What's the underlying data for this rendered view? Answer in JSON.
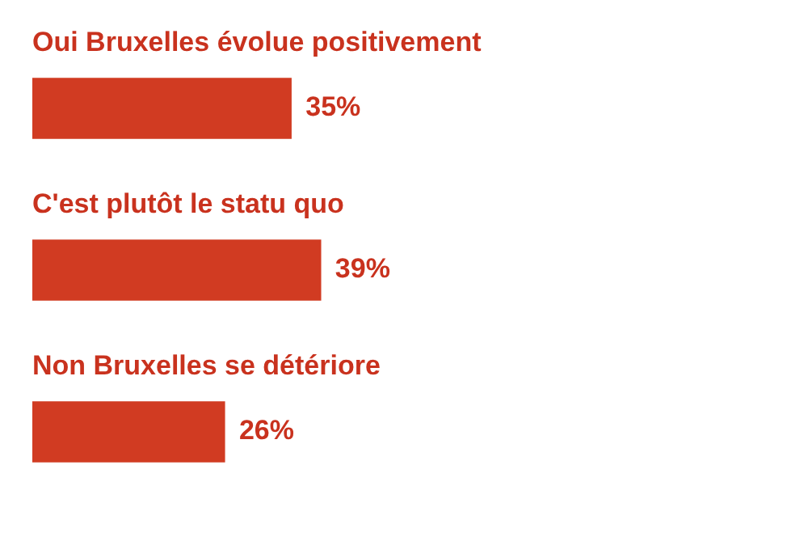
{
  "chart_data": {
    "type": "bar",
    "orientation": "horizontal",
    "categories": [
      "Oui Bruxelles évolue positivement",
      "C'est plutôt le statu quo",
      "Non Bruxelles se détériore"
    ],
    "values": [
      35,
      39,
      26
    ],
    "value_labels": [
      "35%",
      "39%",
      "26%"
    ],
    "color": "#d13b22",
    "legend": false
  }
}
